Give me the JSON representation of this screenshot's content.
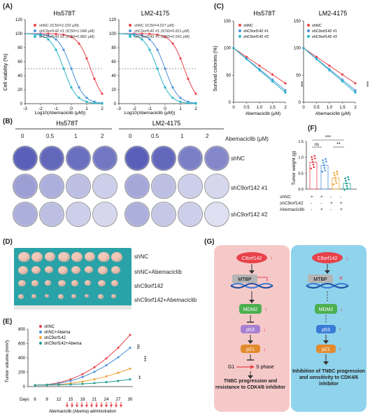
{
  "panels": {
    "A": "(A)",
    "B": "(B)",
    "C": "(C)",
    "D": "(D)",
    "E": "(E)",
    "F": "(F)",
    "G": "(G)"
  },
  "colors": {
    "shNC": "#e8424b",
    "sh1": "#4a90d9",
    "sh2": "#29b6c8",
    "abema": "#f0a030",
    "combo": "#1a9b8f",
    "dish": "#5a5fb8",
    "pink_bg": "#f6c9c9",
    "blue_bg": "#8fd3ec"
  },
  "panelA": {
    "left_title": "Hs578T",
    "right_title": "LM2-4175",
    "ylabel": "Cell viability (%)",
    "xlabel": "Log10(Abemaciclib (μM))",
    "left_legend": [
      "shNC (IC50=2.332 μM)",
      "shC9orf142 #1 (IC50=1.048 μM)",
      "shC9orf142 #2 (IC50=0.882 μM)"
    ],
    "right_legend": [
      "shNC (IC50=4.027 μM)",
      "shC9orf142 #1 (IC50=0.811 μM)",
      "shC9orf142 #2 (IC50=0.541 μM)"
    ],
    "yticks": [
      "0",
      "20",
      "40",
      "60",
      "80",
      "100",
      "120"
    ],
    "xticks": [
      "-3",
      "-2",
      "-1",
      "0",
      "1",
      "2"
    ]
  },
  "panelC": {
    "left_title": "Hs578T",
    "right_title": "LM2-4175",
    "ylabel": "Survival colonies (%)",
    "xlabel": "Abemaciclib (μM)",
    "legend": [
      "shNC",
      "shC9orf142 #1",
      "shC9orf142 #2"
    ],
    "yticks": [
      "0",
      "50",
      "100",
      "150"
    ],
    "xticks": [
      "0",
      "0.5",
      "1.0",
      "1.5",
      "2"
    ],
    "sig": "***"
  },
  "panelB": {
    "group_left": "Hs578T",
    "group_right": "LM2-4175",
    "doses": [
      "0",
      "0.5",
      "1",
      "2",
      "0",
      "0.5",
      "1",
      "2"
    ],
    "dose_label": "Abemaciclib (μM)",
    "rows": [
      "shNC",
      "shC9orf142 #1",
      "shC9orf142 #2"
    ]
  },
  "panelF": {
    "ylabel": "Tumor weight (g)",
    "yticks": [
      "0.0",
      "0.5",
      "1.0",
      "1.5"
    ],
    "sig_top": "***",
    "sig_ns": "ns",
    "sig_right": "**",
    "row_labels": [
      "shNC",
      "shC9orf142",
      "Abemaciclib"
    ],
    "row_signs": [
      [
        "+",
        "+",
        "-",
        "-"
      ],
      [
        "-",
        "-",
        "+",
        "+"
      ],
      [
        "-",
        "+",
        "-",
        "+"
      ]
    ]
  },
  "panelD": {
    "rows": [
      "shNC",
      "shNC+Abemaciclib",
      "shC9orf142",
      "shC9orf142+Abemaciclib"
    ]
  },
  "panelE": {
    "ylabel": "Tumor volume (mm³)",
    "yticks": [
      "0",
      "200",
      "400",
      "600",
      "800"
    ],
    "legend": [
      "shNC",
      "shNC+Abema",
      "shC9orf142",
      "shC9orf142+Abema"
    ],
    "days_label": "Days",
    "days": [
      "6",
      "9",
      "12",
      "15",
      "18",
      "21",
      "24",
      "27",
      "30"
    ],
    "admin_label": "Abemaciclib (Abema) administration",
    "sig_ns": "ns",
    "sig_a": "***",
    "sig_b": "**"
  },
  "panelG": {
    "left": {
      "c9": "C9orf142",
      "mtbp": "MTBP",
      "mdm2": "MDM2",
      "p53": "p53",
      "p21": "p21",
      "g1": "G1",
      "s": "S phase",
      "outcome": "TNBC progression and resistance to CDK4/6 inhibitor"
    },
    "right": {
      "c9": "C9orf142",
      "mtbp": "MTBP",
      "mdm2": "MDM2",
      "p53": "p53",
      "p21": "p21",
      "outcome": "Inhibition of TNBC progression and sensitivity to CDK4/6 inhibitor"
    }
  }
}
